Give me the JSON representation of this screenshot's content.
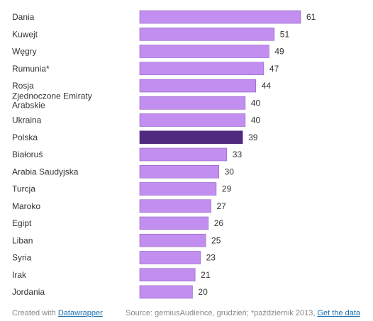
{
  "chart_data": {
    "type": "bar",
    "orientation": "horizontal",
    "categories": [
      "Dania",
      "Kuwejt",
      "Węgry",
      "Rumunia*",
      "Rosja",
      "Zjednoczone Emiraty Arabskie",
      "Ukraina",
      "Polska",
      "Białoruś",
      "Arabia Saudyjska",
      "Turcja",
      "Maroko",
      "Egipt",
      "Liban",
      "Syria",
      "Irak",
      "Jordania"
    ],
    "values": [
      61,
      51,
      49,
      47,
      44,
      40,
      40,
      39,
      33,
      30,
      29,
      27,
      26,
      25,
      23,
      21,
      20
    ],
    "highlight": "Polska",
    "xlim": [
      0,
      61
    ],
    "grid": false,
    "colors": {
      "bar": "#c28ff1",
      "highlight": "#4f2a7f",
      "bar_border": "#8a5cc0"
    }
  },
  "footer": {
    "created_with": "Created with",
    "created_link": "Datawrapper",
    "source": "Source: gemiusAudience, grudzień; *październik 2013,",
    "data_link": "Get the data"
  }
}
